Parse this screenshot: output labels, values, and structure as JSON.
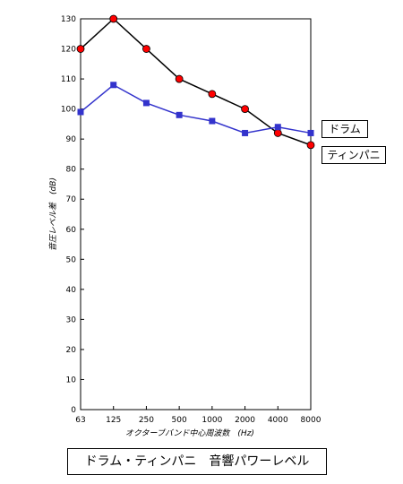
{
  "chart_data": {
    "type": "line",
    "categories": [
      "63",
      "125",
      "250",
      "500",
      "1000",
      "2000",
      "4000",
      "8000"
    ],
    "xlabel": "オクターブバンド中心周波数　(Hz)",
    "ylabel": "音圧レベル差　(dB)",
    "ylim": [
      0,
      130
    ],
    "yticks": [
      "0",
      "10",
      "20",
      "30",
      "40",
      "50",
      "60",
      "70",
      "80",
      "90",
      "100",
      "110",
      "120",
      "130"
    ],
    "grid": false,
    "series": [
      {
        "name": "ドラム",
        "values": [
          120,
          130,
          120,
          110,
          105,
          100,
          92,
          88
        ],
        "color": "#000000",
        "marker": "circle",
        "marker_color": "#ff0000"
      },
      {
        "name": "ティンパニ",
        "values": [
          99,
          108,
          102,
          98,
          96,
          92,
          94,
          92
        ],
        "color": "#3333cc",
        "marker": "square",
        "marker_color": "#3333cc"
      }
    ]
  },
  "caption": "ドラム・ティンパニ　音響パワーレベル"
}
